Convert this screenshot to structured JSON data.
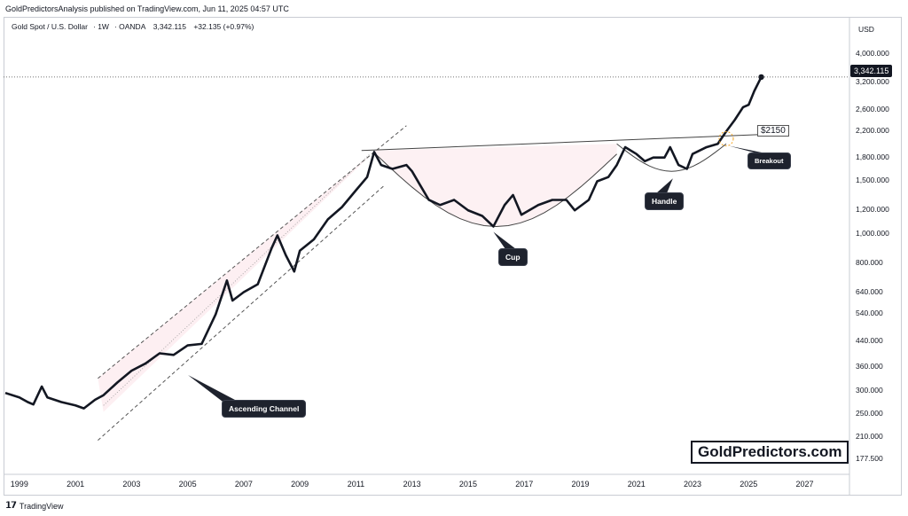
{
  "header": {
    "published": "GoldPredictorsAnalysis published on TradingView.com, Jun 11, 2025 04:57 UTC"
  },
  "symbol": {
    "name": "Gold Spot / U.S. Dollar",
    "interval": "1W",
    "source": "OANDA",
    "price": "3,342.115",
    "change": "+32.135 (+0.97%)"
  },
  "axis": {
    "currency": "USD",
    "y_ticks": [
      "4,000.000",
      "3,200.000",
      "2,600.000",
      "2,200.000",
      "1,800.000",
      "1,500.000",
      "1,200.000",
      "1,000.000",
      "800.000",
      "640.000",
      "540.000",
      "440.000",
      "360.000",
      "300.000",
      "250.000",
      "210.000",
      "177.500"
    ],
    "x_ticks": [
      "1999",
      "2001",
      "2003",
      "2005",
      "2007",
      "2009",
      "2011",
      "2013",
      "2015",
      "2017",
      "2019",
      "2021",
      "2023",
      "2025",
      "2027"
    ]
  },
  "price_tag": "3,342.115",
  "annotations": {
    "ascending_channel": "Ascending Channel",
    "cup": "Cup",
    "handle": "Handle",
    "breakout": "Breakout",
    "level": "$2150"
  },
  "watermark": "GoldPredictors.com",
  "footer": {
    "brand": "TradingView"
  },
  "colors": {
    "price_line": "#131722",
    "channel_fill": "#fce8ec",
    "callout_bg": "#1e222d",
    "breakout_circle": "#f5a623"
  },
  "chart_data": {
    "type": "line",
    "title": "Gold Spot / U.S. Dollar · 1W · OANDA",
    "ylabel": "USD",
    "y_scale": "log",
    "ylim": [
      160,
      4600
    ],
    "xlim": [
      1998.5,
      2028.5
    ],
    "series": [
      {
        "name": "Gold Spot / U.S. Dollar",
        "x": [
          1998.5,
          1999.0,
          1999.3,
          1999.5,
          1999.8,
          2000.0,
          2000.5,
          2001.0,
          2001.3,
          2001.7,
          2002.0,
          2002.5,
          2003.0,
          2003.5,
          2004.0,
          2004.5,
          2005.0,
          2005.5,
          2006.0,
          2006.4,
          2006.6,
          2007.0,
          2007.5,
          2008.0,
          2008.2,
          2008.5,
          2008.8,
          2009.0,
          2009.5,
          2010.0,
          2010.5,
          2011.0,
          2011.4,
          2011.65,
          2011.9,
          2012.3,
          2012.8,
          2013.0,
          2013.3,
          2013.6,
          2014.0,
          2014.5,
          2015.0,
          2015.5,
          2015.9,
          2016.3,
          2016.6,
          2016.9,
          2017.5,
          2018.0,
          2018.5,
          2018.8,
          2019.3,
          2019.6,
          2020.0,
          2020.3,
          2020.6,
          2021.0,
          2021.3,
          2021.6,
          2022.0,
          2022.2,
          2022.5,
          2022.8,
          2023.0,
          2023.5,
          2023.9,
          2024.2,
          2024.5,
          2024.8,
          2025.0,
          2025.2,
          2025.45
        ],
        "y": [
          295,
          285,
          275,
          270,
          310,
          285,
          275,
          268,
          262,
          280,
          290,
          320,
          350,
          370,
          400,
          395,
          425,
          430,
          540,
          700,
          600,
          640,
          680,
          900,
          990,
          850,
          750,
          880,
          960,
          1120,
          1230,
          1400,
          1550,
          1880,
          1700,
          1650,
          1700,
          1620,
          1450,
          1300,
          1250,
          1300,
          1200,
          1150,
          1060,
          1250,
          1350,
          1160,
          1250,
          1300,
          1300,
          1200,
          1300,
          1500,
          1550,
          1700,
          1950,
          1850,
          1750,
          1800,
          1800,
          1950,
          1700,
          1650,
          1850,
          1950,
          2000,
          2200,
          2400,
          2650,
          2700,
          3000,
          3342
        ]
      }
    ],
    "annotations": [
      "Ascending Channel",
      "Cup",
      "Handle",
      "Breakout",
      "$2150"
    ]
  }
}
